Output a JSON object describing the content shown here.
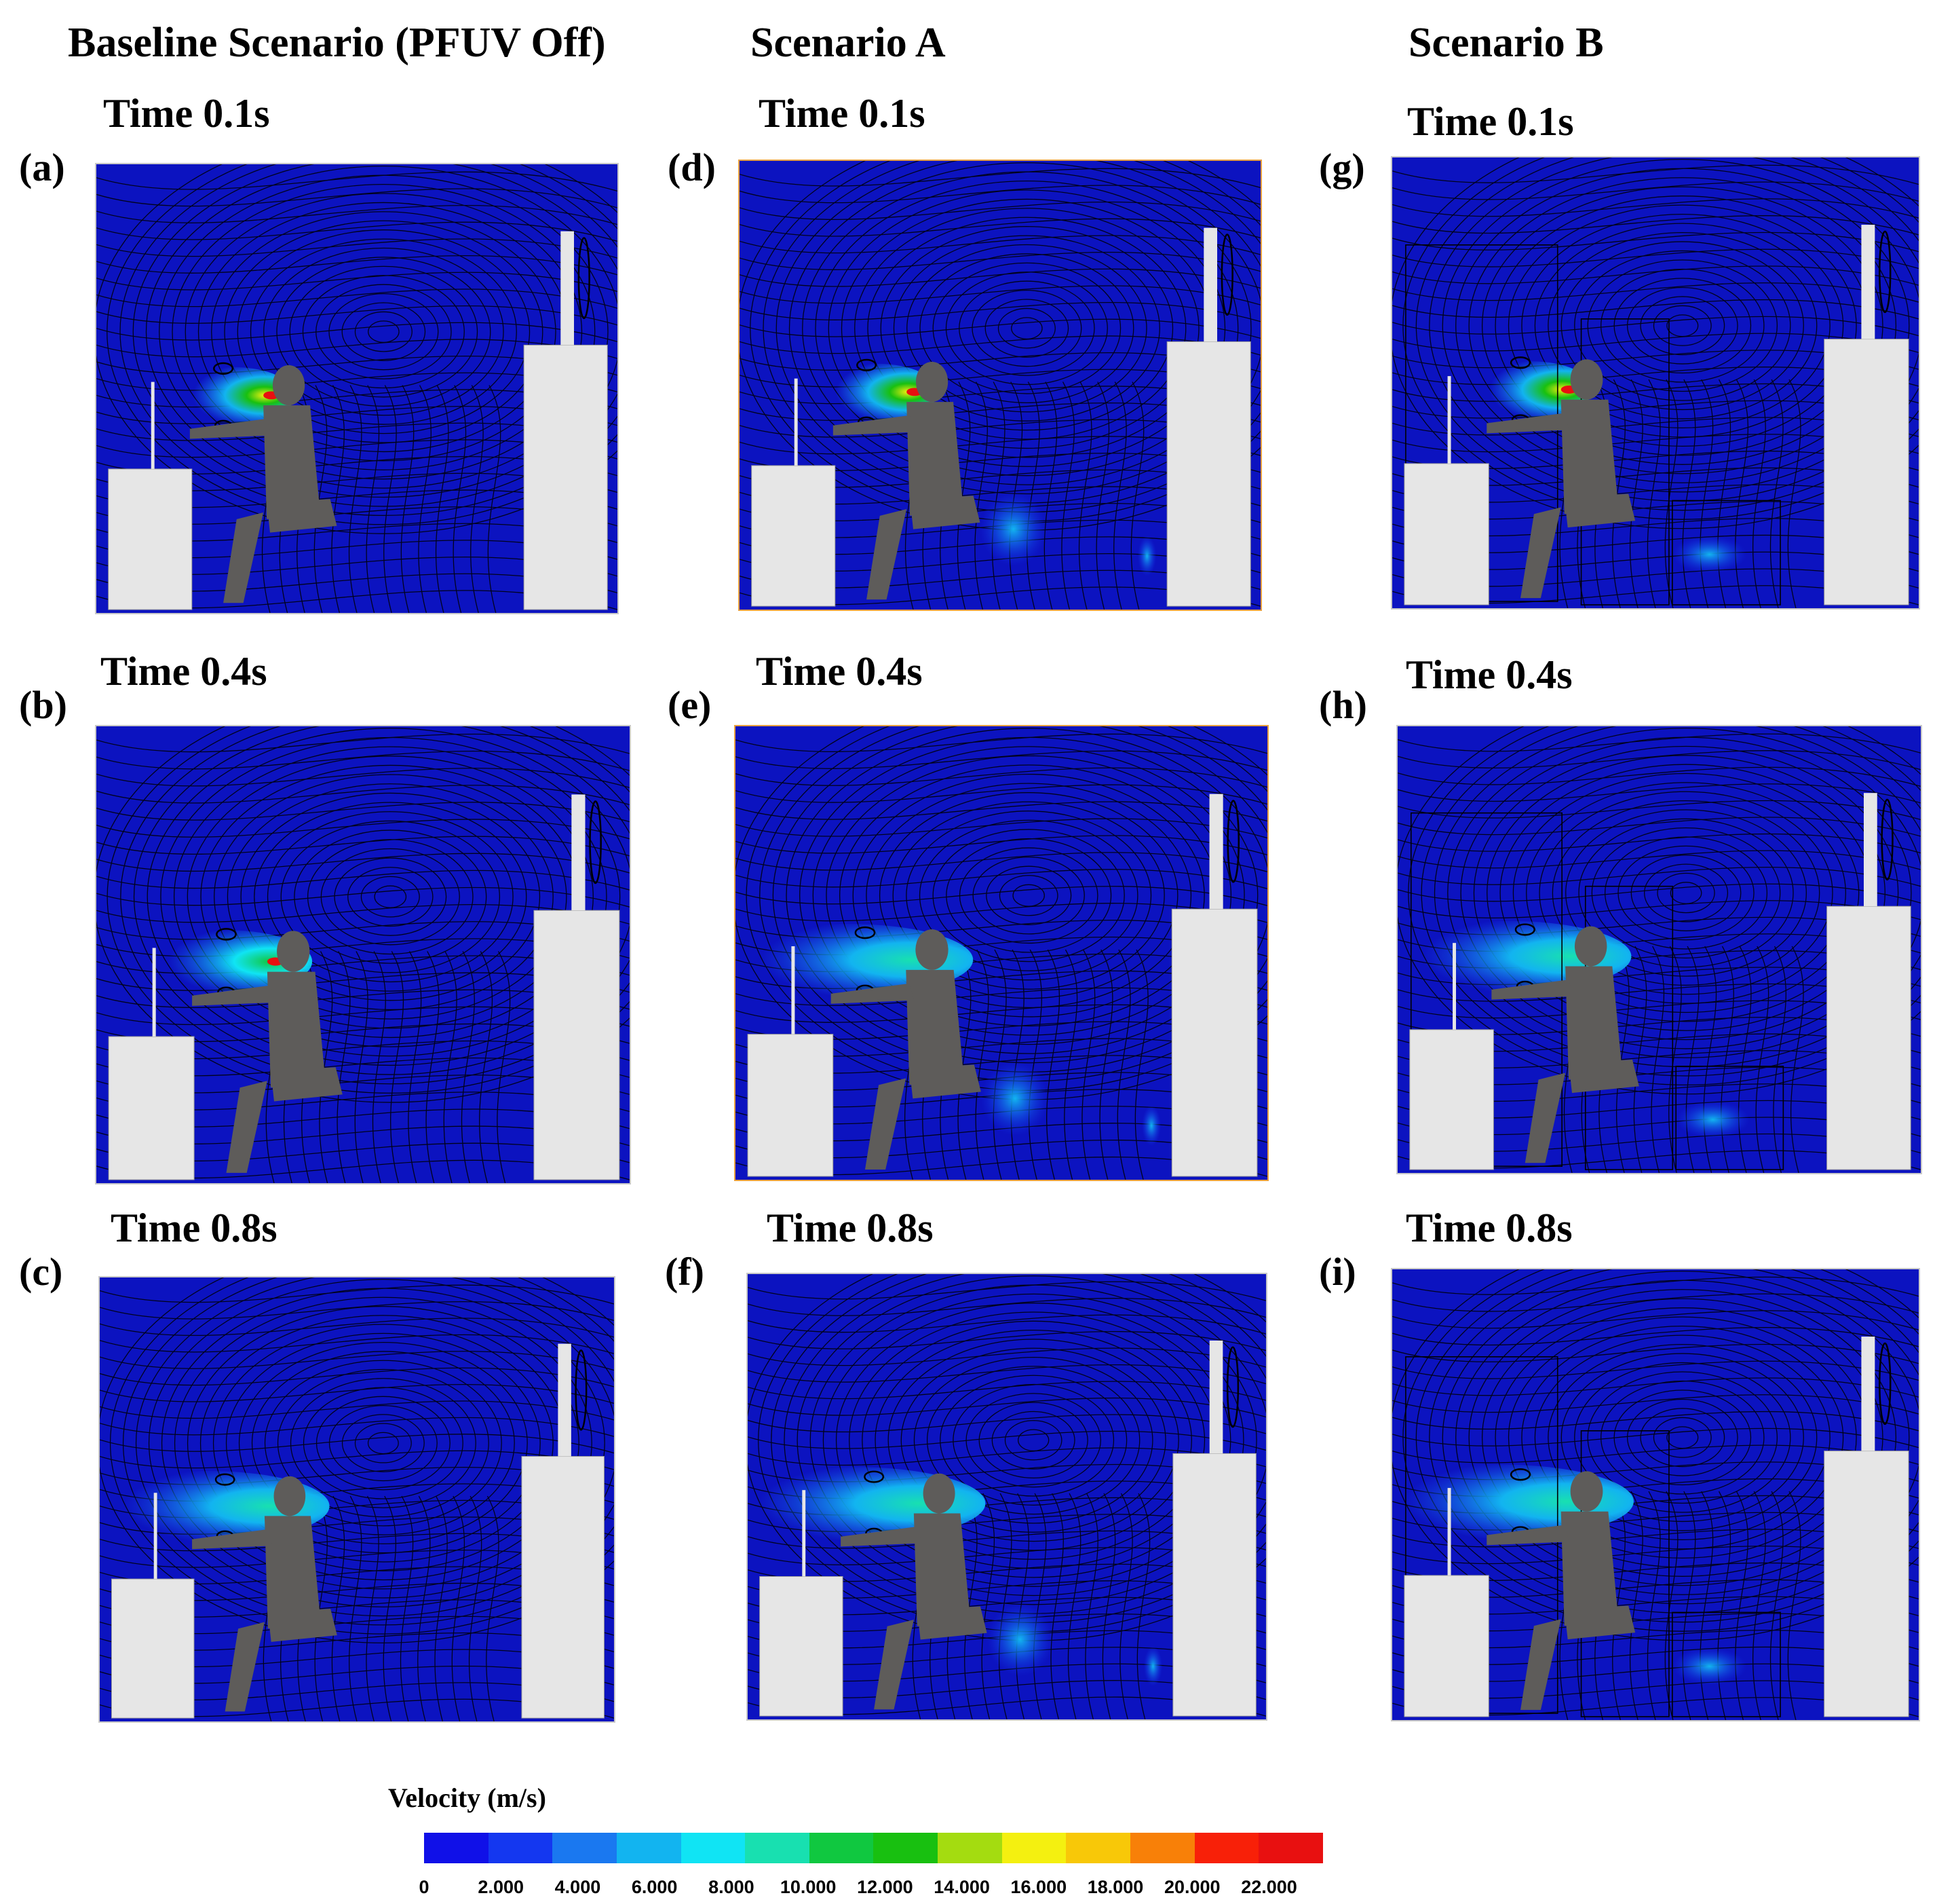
{
  "columns": [
    {
      "title": "Baseline Scenario (PFUV Off)"
    },
    {
      "title": "Scenario A"
    },
    {
      "title": "Scenario B"
    }
  ],
  "panels": [
    {
      "letter": "(a)",
      "time": "Time 0.1s",
      "scenario": "baseline",
      "jet": 1.0
    },
    {
      "letter": "(b)",
      "time": "Time 0.4s",
      "scenario": "baseline",
      "jet": 0.8
    },
    {
      "letter": "(c)",
      "time": "Time 0.8s",
      "scenario": "baseline",
      "jet": 0.45
    },
    {
      "letter": "(d)",
      "time": "Time 0.1s",
      "scenario": "A",
      "jet": 1.0
    },
    {
      "letter": "(e)",
      "time": "Time 0.4s",
      "scenario": "A",
      "jet": 0.45
    },
    {
      "letter": "(f)",
      "time": "Time 0.8s",
      "scenario": "A",
      "jet": 0.35
    },
    {
      "letter": "(g)",
      "time": "Time 0.1s",
      "scenario": "B",
      "jet": 1.0
    },
    {
      "letter": "(h)",
      "time": "Time 0.4s",
      "scenario": "B",
      "jet": 0.45
    },
    {
      "letter": "(i)",
      "time": "Time 0.8s",
      "scenario": "B",
      "jet": 0.35
    }
  ],
  "colorbar": {
    "title": "Velocity (m/s)",
    "ticks": [
      "0",
      "2.000",
      "4.000",
      "6.000",
      "8.000",
      "10.000",
      "12.000",
      "14.000",
      "16.000",
      "18.000",
      "20.000",
      "22.000"
    ],
    "colors": [
      "#1010e8",
      "#1437f0",
      "#1a78f0",
      "#12b4f0",
      "#10e4f4",
      "#18e0b0",
      "#10c840",
      "#18c010",
      "#a4dc10",
      "#f4f010",
      "#f8c808",
      "#f88008",
      "#f82008",
      "#e81010"
    ]
  },
  "colors": {
    "background": "#0c13c0",
    "furniture": "#e6e6e6",
    "mannequin": "#5e5c5a"
  }
}
